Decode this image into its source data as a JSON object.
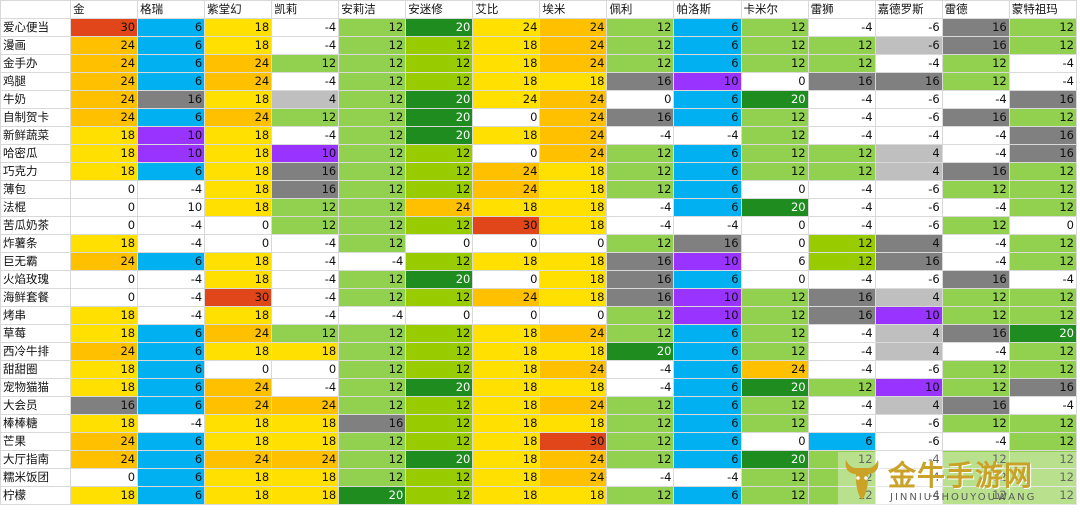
{
  "columns": [
    "金",
    "格瑞",
    "紫堂幻",
    "凯莉",
    "安莉洁",
    "安迷修",
    "艾比",
    "埃米",
    "佩利",
    "帕洛斯",
    "卡米尔",
    "雷狮",
    "嘉德罗斯",
    "雷德",
    "蒙特祖玛"
  ],
  "column_colors": [
    "#ffd700",
    "#00b0f0",
    "#ffd700",
    "#ffffff",
    "#92d050",
    "#92d050",
    "#ffd700",
    "#ffd700",
    "#92d050",
    "#4aa3f0",
    "#92d050",
    "#ffffff",
    "#ffffff",
    "#ffffff",
    "#92d050"
  ],
  "palette": {
    "red": "#e0461a",
    "orange": "#ffc000",
    "yellow": "#ffe000",
    "blue": "#00b0f0",
    "green": "#92d050",
    "darkgreen": "#1e8c1e",
    "lime": "#99cc00",
    "gray": "#808080",
    "lightgray": "#bfbfbf",
    "purple": "#9933ff",
    "white": "#ffffff"
  },
  "rows": [
    {
      "name": "爱心便当",
      "values": [
        30,
        6,
        18,
        -4,
        12,
        20,
        24,
        24,
        12,
        6,
        12,
        -4,
        -6,
        16,
        12
      ],
      "colors": [
        "red",
        "blue",
        "yellow",
        "white",
        "green",
        "darkgreen",
        "yellow",
        "orange",
        "green",
        "blue",
        "green",
        "white",
        "white",
        "gray",
        "green"
      ]
    },
    {
      "name": "漫画",
      "values": [
        24,
        6,
        18,
        -4,
        12,
        12,
        18,
        24,
        12,
        6,
        12,
        12,
        -6,
        16,
        12
      ],
      "colors": [
        "orange",
        "blue",
        "yellow",
        "white",
        "green",
        "lime",
        "yellow",
        "orange",
        "green",
        "blue",
        "green",
        "green",
        "lightgray",
        "gray",
        "green"
      ]
    },
    {
      "name": "金手办",
      "values": [
        24,
        6,
        24,
        12,
        12,
        12,
        18,
        24,
        12,
        6,
        12,
        12,
        -4,
        12,
        -4
      ],
      "colors": [
        "orange",
        "blue",
        "orange",
        "green",
        "green",
        "lime",
        "yellow",
        "orange",
        "green",
        "blue",
        "green",
        "green",
        "white",
        "green",
        "white"
      ]
    },
    {
      "name": "鸡腿",
      "values": [
        24,
        6,
        24,
        -4,
        12,
        12,
        18,
        18,
        16,
        10,
        0,
        16,
        16,
        12,
        -4
      ],
      "colors": [
        "orange",
        "blue",
        "orange",
        "white",
        "green",
        "lime",
        "yellow",
        "yellow",
        "gray",
        "purple",
        "white",
        "gray",
        "gray",
        "green",
        "white"
      ]
    },
    {
      "name": "牛奶",
      "values": [
        24,
        16,
        18,
        4,
        12,
        20,
        24,
        24,
        0,
        6,
        20,
        -4,
        -6,
        -4,
        16
      ],
      "colors": [
        "orange",
        "gray",
        "yellow",
        "lightgray",
        "green",
        "darkgreen",
        "yellow",
        "orange",
        "white",
        "blue",
        "darkgreen",
        "white",
        "white",
        "white",
        "gray"
      ]
    },
    {
      "name": "自制贺卡",
      "values": [
        24,
        6,
        24,
        12,
        12,
        20,
        0,
        24,
        16,
        6,
        12,
        -4,
        -6,
        16,
        12
      ],
      "colors": [
        "orange",
        "blue",
        "orange",
        "green",
        "green",
        "darkgreen",
        "white",
        "orange",
        "gray",
        "blue",
        "green",
        "white",
        "white",
        "gray",
        "green"
      ]
    },
    {
      "name": "新鲜蔬菜",
      "values": [
        18,
        10,
        18,
        -4,
        12,
        20,
        18,
        24,
        -4,
        -4,
        12,
        -4,
        -4,
        -4,
        16
      ],
      "colors": [
        "yellow",
        "purple",
        "yellow",
        "white",
        "green",
        "darkgreen",
        "yellow",
        "orange",
        "white",
        "white",
        "green",
        "white",
        "white",
        "white",
        "gray"
      ]
    },
    {
      "name": "哈密瓜",
      "values": [
        18,
        10,
        18,
        10,
        12,
        12,
        0,
        24,
        12,
        6,
        12,
        12,
        4,
        -4,
        16
      ],
      "colors": [
        "yellow",
        "purple",
        "yellow",
        "purple",
        "green",
        "lime",
        "white",
        "orange",
        "green",
        "blue",
        "green",
        "green",
        "lightgray",
        "white",
        "gray"
      ]
    },
    {
      "name": "巧克力",
      "values": [
        18,
        6,
        18,
        16,
        12,
        12,
        24,
        18,
        12,
        6,
        12,
        12,
        4,
        16,
        12
      ],
      "colors": [
        "yellow",
        "blue",
        "yellow",
        "gray",
        "green",
        "lime",
        "orange",
        "yellow",
        "green",
        "blue",
        "green",
        "green",
        "lightgray",
        "gray",
        "green"
      ]
    },
    {
      "name": "薄包",
      "values": [
        0,
        -4,
        18,
        16,
        12,
        12,
        24,
        18,
        12,
        6,
        0,
        -4,
        -6,
        12,
        12
      ],
      "colors": [
        "white",
        "white",
        "yellow",
        "gray",
        "green",
        "lime",
        "orange",
        "yellow",
        "green",
        "blue",
        "white",
        "white",
        "white",
        "green",
        "green"
      ]
    },
    {
      "name": "法棍",
      "values": [
        0,
        10,
        18,
        12,
        12,
        24,
        18,
        18,
        -4,
        6,
        20,
        -4,
        -6,
        -4,
        12
      ],
      "colors": [
        "white",
        "white",
        "yellow",
        "green",
        "green",
        "orange",
        "yellow",
        "yellow",
        "white",
        "blue",
        "darkgreen",
        "white",
        "white",
        "white",
        "green"
      ]
    },
    {
      "name": "苦瓜奶茶",
      "values": [
        0,
        -4,
        0,
        12,
        12,
        12,
        30,
        18,
        -4,
        -4,
        0,
        -4,
        -6,
        12,
        0
      ],
      "colors": [
        "white",
        "white",
        "white",
        "green",
        "green",
        "lime",
        "red",
        "yellow",
        "white",
        "white",
        "white",
        "white",
        "white",
        "green",
        "white"
      ]
    },
    {
      "name": "炸薯条",
      "values": [
        18,
        -4,
        0,
        -4,
        12,
        0,
        0,
        0,
        12,
        16,
        0,
        12,
        4,
        -4,
        12
      ],
      "colors": [
        "yellow",
        "white",
        "white",
        "white",
        "green",
        "white",
        "white",
        "white",
        "green",
        "gray",
        "white",
        "lime",
        "gray",
        "white",
        "green"
      ]
    },
    {
      "name": "巨无霸",
      "values": [
        24,
        6,
        18,
        -4,
        -4,
        12,
        18,
        18,
        16,
        10,
        6,
        12,
        16,
        -4,
        12
      ],
      "colors": [
        "orange",
        "blue",
        "yellow",
        "white",
        "white",
        "lime",
        "yellow",
        "yellow",
        "gray",
        "purple",
        "white",
        "lime",
        "gray",
        "white",
        "green"
      ]
    },
    {
      "name": "火焰玫瑰",
      "values": [
        0,
        -4,
        18,
        -4,
        12,
        20,
        0,
        18,
        16,
        6,
        0,
        -4,
        -6,
        16,
        -4
      ],
      "colors": [
        "white",
        "white",
        "yellow",
        "white",
        "green",
        "darkgreen",
        "white",
        "yellow",
        "gray",
        "blue",
        "white",
        "white",
        "white",
        "gray",
        "white"
      ]
    },
    {
      "name": "海鲜套餐",
      "values": [
        0,
        -4,
        30,
        -4,
        12,
        12,
        24,
        18,
        16,
        10,
        12,
        16,
        4,
        12,
        12
      ],
      "colors": [
        "white",
        "white",
        "red",
        "white",
        "green",
        "lime",
        "orange",
        "yellow",
        "gray",
        "purple",
        "green",
        "gray",
        "lightgray",
        "green",
        "green"
      ]
    },
    {
      "name": "烤串",
      "values": [
        18,
        -4,
        18,
        -4,
        -4,
        0,
        0,
        0,
        12,
        10,
        12,
        16,
        10,
        12,
        12
      ],
      "colors": [
        "yellow",
        "white",
        "yellow",
        "white",
        "white",
        "white",
        "white",
        "white",
        "green",
        "purple",
        "green",
        "gray",
        "purple",
        "green",
        "green"
      ]
    },
    {
      "name": "草莓",
      "values": [
        18,
        6,
        24,
        12,
        12,
        12,
        18,
        24,
        12,
        6,
        12,
        -4,
        4,
        16,
        20
      ],
      "colors": [
        "yellow",
        "blue",
        "orange",
        "green",
        "green",
        "lime",
        "yellow",
        "orange",
        "green",
        "blue",
        "green",
        "white",
        "lightgray",
        "gray",
        "darkgreen"
      ]
    },
    {
      "name": "西冷牛排",
      "values": [
        24,
        6,
        18,
        18,
        12,
        12,
        18,
        18,
        20,
        6,
        12,
        -4,
        4,
        -4,
        12
      ],
      "colors": [
        "orange",
        "blue",
        "yellow",
        "yellow",
        "green",
        "lime",
        "yellow",
        "yellow",
        "darkgreen",
        "blue",
        "green",
        "white",
        "lightgray",
        "white",
        "green"
      ]
    },
    {
      "name": "甜甜圈",
      "values": [
        18,
        6,
        0,
        0,
        12,
        12,
        18,
        24,
        -4,
        6,
        24,
        -4,
        -6,
        12,
        12
      ],
      "colors": [
        "yellow",
        "blue",
        "white",
        "white",
        "green",
        "lime",
        "yellow",
        "orange",
        "white",
        "blue",
        "orange",
        "white",
        "white",
        "green",
        "green"
      ]
    },
    {
      "name": "宠物猫猫",
      "values": [
        18,
        6,
        24,
        -4,
        12,
        20,
        18,
        18,
        -4,
        6,
        20,
        12,
        10,
        12,
        16
      ],
      "colors": [
        "yellow",
        "blue",
        "orange",
        "white",
        "green",
        "darkgreen",
        "yellow",
        "yellow",
        "white",
        "blue",
        "darkgreen",
        "green",
        "purple",
        "green",
        "gray"
      ]
    },
    {
      "name": "大会员",
      "values": [
        16,
        6,
        24,
        24,
        12,
        12,
        18,
        24,
        12,
        6,
        12,
        -4,
        4,
        16,
        -4
      ],
      "colors": [
        "gray",
        "blue",
        "orange",
        "orange",
        "green",
        "lime",
        "yellow",
        "orange",
        "green",
        "blue",
        "green",
        "white",
        "lightgray",
        "gray",
        "white"
      ]
    },
    {
      "name": "棒棒糖",
      "values": [
        18,
        -4,
        18,
        18,
        16,
        12,
        18,
        18,
        12,
        6,
        12,
        -4,
        -6,
        12,
        12
      ],
      "colors": [
        "yellow",
        "white",
        "yellow",
        "yellow",
        "gray",
        "lime",
        "yellow",
        "yellow",
        "green",
        "blue",
        "green",
        "white",
        "white",
        "green",
        "green"
      ]
    },
    {
      "name": "芒果",
      "values": [
        24,
        6,
        18,
        18,
        12,
        12,
        18,
        30,
        12,
        6,
        0,
        6,
        -6,
        -4,
        12
      ],
      "colors": [
        "orange",
        "blue",
        "yellow",
        "yellow",
        "green",
        "lime",
        "yellow",
        "red",
        "green",
        "blue",
        "white",
        "blue",
        "white",
        "white",
        "green"
      ]
    },
    {
      "name": "大厅指南",
      "values": [
        24,
        6,
        24,
        24,
        12,
        20,
        18,
        24,
        12,
        6,
        20,
        12,
        -4,
        12,
        12
      ],
      "colors": [
        "orange",
        "blue",
        "orange",
        "orange",
        "green",
        "darkgreen",
        "yellow",
        "orange",
        "green",
        "blue",
        "darkgreen",
        "green",
        "white",
        "green",
        "green"
      ]
    },
    {
      "name": "糯米饭团",
      "values": [
        0,
        6,
        18,
        18,
        12,
        12,
        18,
        24,
        -4,
        -4,
        12,
        12,
        -4,
        12,
        12
      ],
      "colors": [
        "white",
        "blue",
        "yellow",
        "yellow",
        "green",
        "lime",
        "yellow",
        "orange",
        "white",
        "white",
        "green",
        "green",
        "white",
        "green",
        "green"
      ]
    },
    {
      "name": "柠檬",
      "values": [
        18,
        6,
        18,
        18,
        20,
        12,
        18,
        18,
        12,
        6,
        12,
        12,
        -4,
        12,
        12
      ],
      "colors": [
        "yellow",
        "blue",
        "yellow",
        "yellow",
        "darkgreen",
        "lime",
        "yellow",
        "yellow",
        "green",
        "blue",
        "green",
        "green",
        "white",
        "green",
        "green"
      ]
    }
  ],
  "watermark": {
    "logo_icon": "bull-head-icon",
    "text": "金牛手游网",
    "sub": "JINNIUSHOUYOUWANG"
  }
}
